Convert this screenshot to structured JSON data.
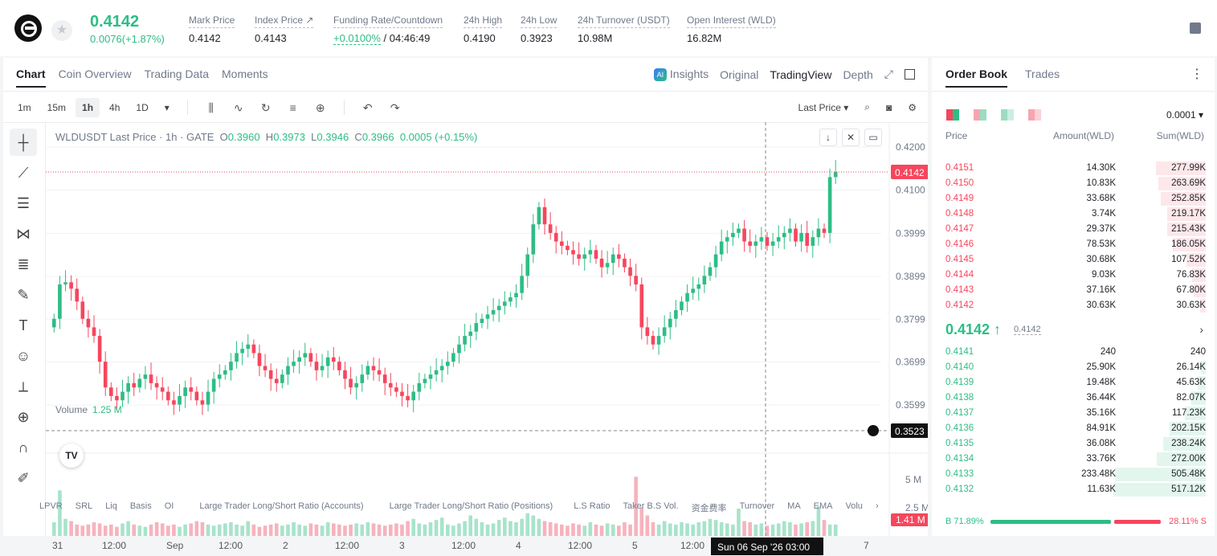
{
  "header": {
    "last_price": "0.4142",
    "price_change": "0.0076(+1.87%)",
    "stats": [
      {
        "label": "Mark Price",
        "value": "0.4142"
      },
      {
        "label": "Index Price ↗",
        "value": "0.4143"
      },
      {
        "label": "Funding Rate/Countdown",
        "value_green": "+0.0100%",
        "value": " / 04:46:49"
      },
      {
        "label": "24h High",
        "value": "0.4190"
      },
      {
        "label": "24h Low",
        "value": "0.3923"
      },
      {
        "label": "24h Turnover (USDT)",
        "value": "10.98M"
      },
      {
        "label": "Open Interest (WLD)",
        "value": "16.82M"
      }
    ]
  },
  "chart_panel": {
    "tabs": [
      "Chart",
      "Coin Overview",
      "Trading Data",
      "Moments"
    ],
    "views": [
      "Insights",
      "Original",
      "TradingView",
      "Depth"
    ],
    "timeframes": [
      "1m",
      "15m",
      "1h",
      "4h",
      "1D"
    ],
    "price_type": "Last Price",
    "legend": {
      "symbol": "WLDUSDT Last Price · 1h · GATE",
      "o": "0.3960",
      "h": "0.3973",
      "l": "0.3946",
      "c": "0.3966",
      "chg": "0.0005 (+0.15%)"
    },
    "volume_label": "Volume",
    "volume_value": "1.25 M",
    "bottom_tools": [
      "LPVR",
      "SRL",
      "Liq",
      "Basis",
      "OI",
      "Large Trader Long/Short Ratio (Accounts)",
      "Large Trader Long/Short Ratio (Positions)",
      "L.S Ratio",
      "Taker B.S Vol.",
      "资金费率",
      "Turnover",
      "MA",
      "EMA",
      "Volu"
    ],
    "tv_logo": "TV"
  },
  "chart_data": {
    "type": "candlestick",
    "title": "WLDUSDT Last Price · 1h · GATE",
    "price_axis": {
      "ticks": [
        "0.4200",
        "0.4100",
        "0.3999",
        "0.3899",
        "0.3799",
        "0.3699",
        "0.3599"
      ],
      "ylim": [
        0.35,
        0.423
      ]
    },
    "last_price_label": "0.4142",
    "crosshair_price_label": "0.3523",
    "crosshair_time_label": "Sun 06 Sep '26   03:00",
    "volume_axis": {
      "ticks": [
        "5 M",
        "2.5 M"
      ],
      "current_label": "1.41 M"
    },
    "x_ticks": [
      "31",
      "12:00",
      "Sep",
      "12:00",
      "2",
      "12:00",
      "3",
      "12:00",
      "4",
      "12:00",
      "5",
      "12:00",
      "6",
      "7"
    ],
    "close_series": [
      0.38,
      0.388,
      0.3885,
      0.387,
      0.384,
      0.38,
      0.378,
      0.376,
      0.37,
      0.364,
      0.362,
      0.361,
      0.363,
      0.365,
      0.364,
      0.366,
      0.367,
      0.365,
      0.364,
      0.363,
      0.361,
      0.36,
      0.362,
      0.364,
      0.363,
      0.361,
      0.36,
      0.363,
      0.366,
      0.367,
      0.368,
      0.37,
      0.372,
      0.373,
      0.374,
      0.372,
      0.369,
      0.368,
      0.366,
      0.365,
      0.367,
      0.369,
      0.37,
      0.371,
      0.372,
      0.37,
      0.368,
      0.369,
      0.371,
      0.37,
      0.368,
      0.366,
      0.364,
      0.365,
      0.367,
      0.369,
      0.368,
      0.367,
      0.365,
      0.364,
      0.363,
      0.362,
      0.361,
      0.363,
      0.365,
      0.366,
      0.367,
      0.368,
      0.369,
      0.37,
      0.372,
      0.374,
      0.376,
      0.377,
      0.379,
      0.38,
      0.381,
      0.382,
      0.383,
      0.384,
      0.385,
      0.386,
      0.39,
      0.395,
      0.402,
      0.406,
      0.402,
      0.4,
      0.398,
      0.397,
      0.396,
      0.395,
      0.394,
      0.395,
      0.396,
      0.394,
      0.392,
      0.393,
      0.395,
      0.394,
      0.392,
      0.39,
      0.388,
      0.378,
      0.376,
      0.374,
      0.376,
      0.378,
      0.38,
      0.382,
      0.384,
      0.386,
      0.387,
      0.388,
      0.39,
      0.392,
      0.395,
      0.398,
      0.399,
      0.4,
      0.401,
      0.398,
      0.397,
      0.398,
      0.399,
      0.397,
      0.398,
      0.399,
      0.4,
      0.401,
      0.398,
      0.4,
      0.397,
      0.399,
      0.401,
      0.4,
      0.413,
      0.4142
    ],
    "volume_series": [
      1.2,
      4.0,
      1.5,
      1.3,
      1.0,
      0.9,
      1.0,
      1.2,
      1.1,
      0.9,
      1.0,
      0.8,
      1.1,
      1.3,
      1.0,
      0.9,
      0.8,
      1.0,
      1.2,
      1.1,
      0.9,
      1.0,
      0.8,
      1.0,
      1.1,
      1.3,
      1.2,
      1.0,
      0.9,
      1.0,
      1.1,
      1.2,
      1.0,
      0.9,
      1.3,
      1.0,
      0.8,
      0.9,
      1.0,
      1.1,
      0.9,
      1.0,
      1.2,
      1.0,
      0.9,
      1.1,
      1.0,
      0.9,
      1.2,
      1.1,
      1.0,
      0.9,
      1.0,
      1.1,
      1.0,
      1.2,
      1.1,
      1.0,
      0.9,
      1.0,
      1.1,
      1.0,
      1.3,
      1.5,
      1.1,
      1.0,
      1.2,
      1.4,
      1.6,
      1.0,
      0.9,
      1.1,
      1.3,
      1.8,
      1.5,
      1.2,
      1.0,
      1.1,
      1.4,
      1.6,
      1.3,
      1.2,
      1.5,
      2.0,
      1.8,
      1.5,
      1.3,
      1.2,
      1.1,
      1.0,
      0.9,
      1.1,
      1.0,
      0.9,
      1.2,
      1.0,
      0.9,
      1.1,
      1.0,
      0.9,
      1.2,
      1.0,
      5.2,
      2.5,
      1.8,
      1.2,
      1.0,
      1.3,
      1.1,
      1.0,
      1.2,
      1.1,
      1.0,
      1.2,
      1.3,
      1.5,
      1.4,
      1.2,
      1.1,
      1.0,
      2.4,
      1.3,
      1.2,
      1.0,
      1.1,
      0.9,
      1.0,
      1.1,
      1.3,
      1.2,
      1.0,
      1.1,
      1.2,
      1.3,
      2.6,
      1.4
    ],
    "grid": true
  },
  "order_book": {
    "tabs": [
      "Order Book",
      "Trades"
    ],
    "precision": "0.0001",
    "headers": {
      "price": "Price",
      "amount": "Amount(WLD)",
      "sum": "Sum(WLD)"
    },
    "asks": [
      {
        "price": "0.4151",
        "amount": "14.30K",
        "sum": "277.99K",
        "depth": 0.54
      },
      {
        "price": "0.4150",
        "amount": "10.83K",
        "sum": "263.69K",
        "depth": 0.51
      },
      {
        "price": "0.4149",
        "amount": "33.68K",
        "sum": "252.85K",
        "depth": 0.49
      },
      {
        "price": "0.4148",
        "amount": "3.74K",
        "sum": "219.17K",
        "depth": 0.42
      },
      {
        "price": "0.4147",
        "amount": "29.37K",
        "sum": "215.43K",
        "depth": 0.42
      },
      {
        "price": "0.4146",
        "amount": "78.53K",
        "sum": "186.05K",
        "depth": 0.36
      },
      {
        "price": "0.4145",
        "amount": "30.68K",
        "sum": "107.52K",
        "depth": 0.21
      },
      {
        "price": "0.4144",
        "amount": "9.03K",
        "sum": "76.83K",
        "depth": 0.15
      },
      {
        "price": "0.4143",
        "amount": "37.16K",
        "sum": "67.80K",
        "depth": 0.13
      },
      {
        "price": "0.4142",
        "amount": "30.63K",
        "sum": "30.63K",
        "depth": 0.06
      }
    ],
    "mid_price": "0.4142 ↑",
    "mid_sub": "0.4142",
    "bids": [
      {
        "price": "0.4141",
        "amount": "240",
        "sum": "240",
        "depth": 0.0
      },
      {
        "price": "0.4140",
        "amount": "25.90K",
        "sum": "26.14K",
        "depth": 0.05
      },
      {
        "price": "0.4139",
        "amount": "19.48K",
        "sum": "45.63K",
        "depth": 0.09
      },
      {
        "price": "0.4138",
        "amount": "36.44K",
        "sum": "82.07K",
        "depth": 0.16
      },
      {
        "price": "0.4137",
        "amount": "35.16K",
        "sum": "117.23K",
        "depth": 0.23
      },
      {
        "price": "0.4136",
        "amount": "84.91K",
        "sum": "202.15K",
        "depth": 0.39
      },
      {
        "price": "0.4135",
        "amount": "36.08K",
        "sum": "238.24K",
        "depth": 0.46
      },
      {
        "price": "0.4134",
        "amount": "33.76K",
        "sum": "272.00K",
        "depth": 0.53
      },
      {
        "price": "0.4133",
        "amount": "233.48K",
        "sum": "505.48K",
        "depth": 0.98
      },
      {
        "price": "0.4132",
        "amount": "11.63K",
        "sum": "517.12K",
        "depth": 1.0
      }
    ],
    "buy_ratio": "B 71.89%",
    "sell_ratio": "28.11% S"
  },
  "colors": {
    "up": "#2ebd85",
    "down": "#f6465d"
  }
}
